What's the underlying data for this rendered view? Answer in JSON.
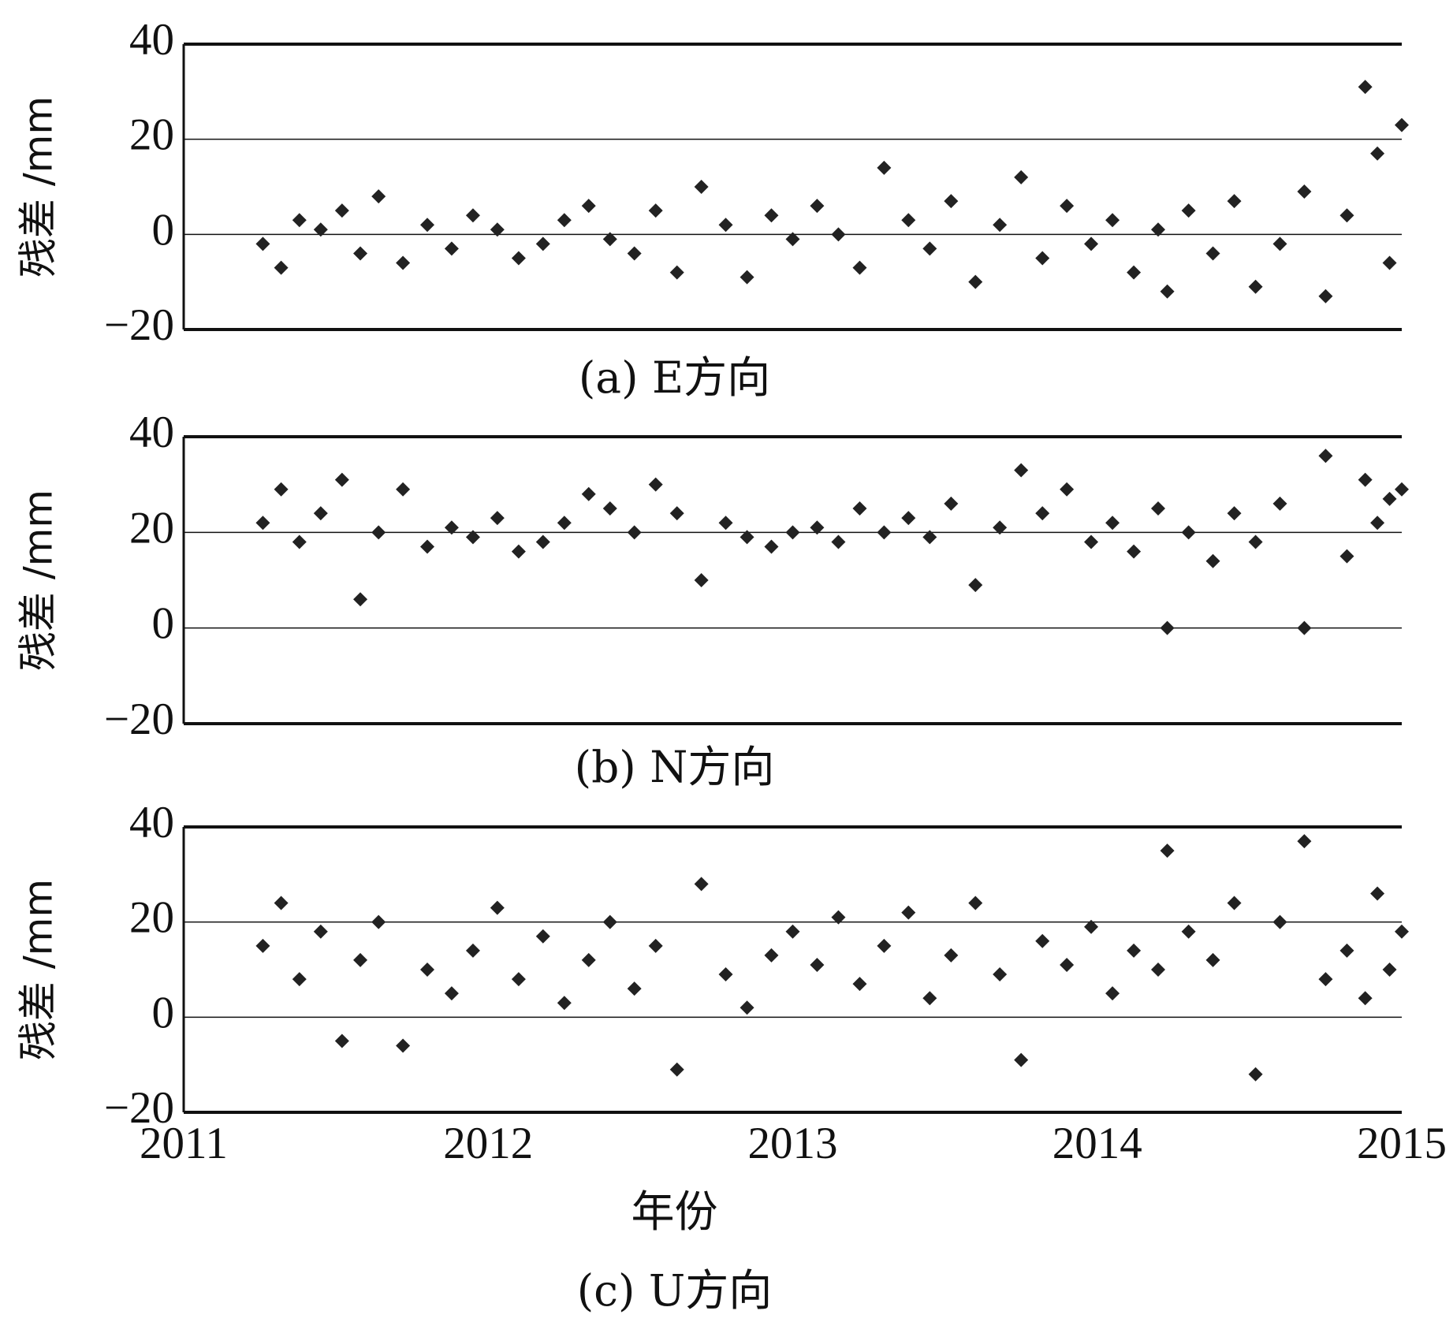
{
  "chart_data": [
    {
      "type": "scatter",
      "title": "(a) E方向",
      "ylabel": "残差 /mm",
      "color": "#222222",
      "xlim": [
        2011,
        2015
      ],
      "ylim": [
        -20,
        40
      ],
      "yticks": [
        {
          "value": -20,
          "label": "−20"
        },
        0,
        20,
        40
      ],
      "grid": true,
      "x": [
        2011.26,
        2011.32,
        2011.38,
        2011.45,
        2011.52,
        2011.58,
        2011.64,
        2011.72,
        2011.8,
        2011.88,
        2011.95,
        2012.03,
        2012.1,
        2012.18,
        2012.25,
        2012.33,
        2012.4,
        2012.48,
        2012.55,
        2012.62,
        2012.7,
        2012.78,
        2012.85,
        2012.93,
        2013.0,
        2013.08,
        2013.15,
        2013.22,
        2013.3,
        2013.38,
        2013.45,
        2013.52,
        2013.6,
        2013.68,
        2013.75,
        2013.82,
        2013.9,
        2013.98,
        2014.05,
        2014.12,
        2014.2,
        2014.23,
        2014.3,
        2014.38,
        2014.45,
        2014.52,
        2014.6,
        2014.68,
        2014.75,
        2014.82,
        2014.88,
        2014.92,
        2014.96,
        2015.0
      ],
      "values": [
        -2,
        -7,
        3,
        1,
        5,
        -4,
        8,
        -6,
        2,
        -3,
        4,
        1,
        -5,
        -2,
        3,
        6,
        -1,
        -4,
        5,
        -8,
        10,
        2,
        -9,
        4,
        -1,
        6,
        0,
        -7,
        14,
        3,
        -3,
        7,
        -10,
        2,
        12,
        -5,
        6,
        -2,
        3,
        -8,
        1,
        -12,
        5,
        -4,
        7,
        -11,
        -2,
        9,
        -13,
        4,
        31,
        17,
        -6,
        23
      ]
    },
    {
      "type": "scatter",
      "title": "(b) N方向",
      "ylabel": "残差 /mm",
      "color": "#222222",
      "xlim": [
        2011,
        2015
      ],
      "ylim": [
        -20,
        40
      ],
      "yticks": [
        {
          "value": -20,
          "label": "−20"
        },
        0,
        20,
        40
      ],
      "grid": true,
      "x": [
        2011.26,
        2011.32,
        2011.38,
        2011.45,
        2011.52,
        2011.58,
        2011.64,
        2011.72,
        2011.8,
        2011.88,
        2011.95,
        2012.03,
        2012.1,
        2012.18,
        2012.25,
        2012.33,
        2012.4,
        2012.48,
        2012.55,
        2012.62,
        2012.7,
        2012.78,
        2012.85,
        2012.93,
        2013.0,
        2013.08,
        2013.15,
        2013.22,
        2013.3,
        2013.38,
        2013.45,
        2013.52,
        2013.6,
        2013.68,
        2013.75,
        2013.82,
        2013.9,
        2013.98,
        2014.05,
        2014.12,
        2014.2,
        2014.23,
        2014.3,
        2014.38,
        2014.45,
        2014.52,
        2014.6,
        2014.68,
        2014.75,
        2014.82,
        2014.88,
        2014.92,
        2014.96,
        2015.0
      ],
      "values": [
        22,
        29,
        18,
        24,
        31,
        6,
        20,
        29,
        17,
        21,
        19,
        23,
        16,
        18,
        22,
        28,
        25,
        20,
        30,
        24,
        10,
        22,
        19,
        17,
        20,
        21,
        18,
        25,
        20,
        23,
        19,
        26,
        9,
        21,
        33,
        24,
        29,
        18,
        22,
        16,
        25,
        0,
        20,
        14,
        24,
        18,
        26,
        0,
        36,
        15,
        31,
        22,
        27,
        29
      ]
    },
    {
      "type": "scatter",
      "title": "(c) U方向",
      "ylabel": "残差 /mm",
      "xlabel": "年份",
      "color": "#222222",
      "xlim": [
        2011,
        2015
      ],
      "xticks": [
        2011,
        2012,
        2013,
        2014,
        2015
      ],
      "ylim": [
        -20,
        40
      ],
      "yticks": [
        {
          "value": -20,
          "label": "−20"
        },
        0,
        20,
        40
      ],
      "grid": true,
      "x": [
        2011.26,
        2011.32,
        2011.38,
        2011.45,
        2011.52,
        2011.58,
        2011.64,
        2011.72,
        2011.8,
        2011.88,
        2011.95,
        2012.03,
        2012.1,
        2012.18,
        2012.25,
        2012.33,
        2012.4,
        2012.48,
        2012.55,
        2012.62,
        2012.7,
        2012.78,
        2012.85,
        2012.93,
        2013.0,
        2013.08,
        2013.15,
        2013.22,
        2013.3,
        2013.38,
        2013.45,
        2013.52,
        2013.6,
        2013.68,
        2013.75,
        2013.82,
        2013.9,
        2013.98,
        2014.05,
        2014.12,
        2014.2,
        2014.23,
        2014.3,
        2014.38,
        2014.45,
        2014.52,
        2014.6,
        2014.68,
        2014.75,
        2014.82,
        2014.88,
        2014.92,
        2014.96,
        2015.0
      ],
      "values": [
        15,
        24,
        8,
        18,
        -5,
        12,
        20,
        -6,
        10,
        5,
        14,
        23,
        8,
        17,
        3,
        12,
        20,
        6,
        15,
        -11,
        28,
        9,
        2,
        13,
        18,
        11,
        21,
        7,
        15,
        22,
        4,
        13,
        24,
        9,
        -9,
        16,
        11,
        19,
        5,
        14,
        10,
        35,
        18,
        12,
        24,
        -12,
        20,
        37,
        8,
        14,
        4,
        26,
        10,
        18
      ]
    }
  ]
}
